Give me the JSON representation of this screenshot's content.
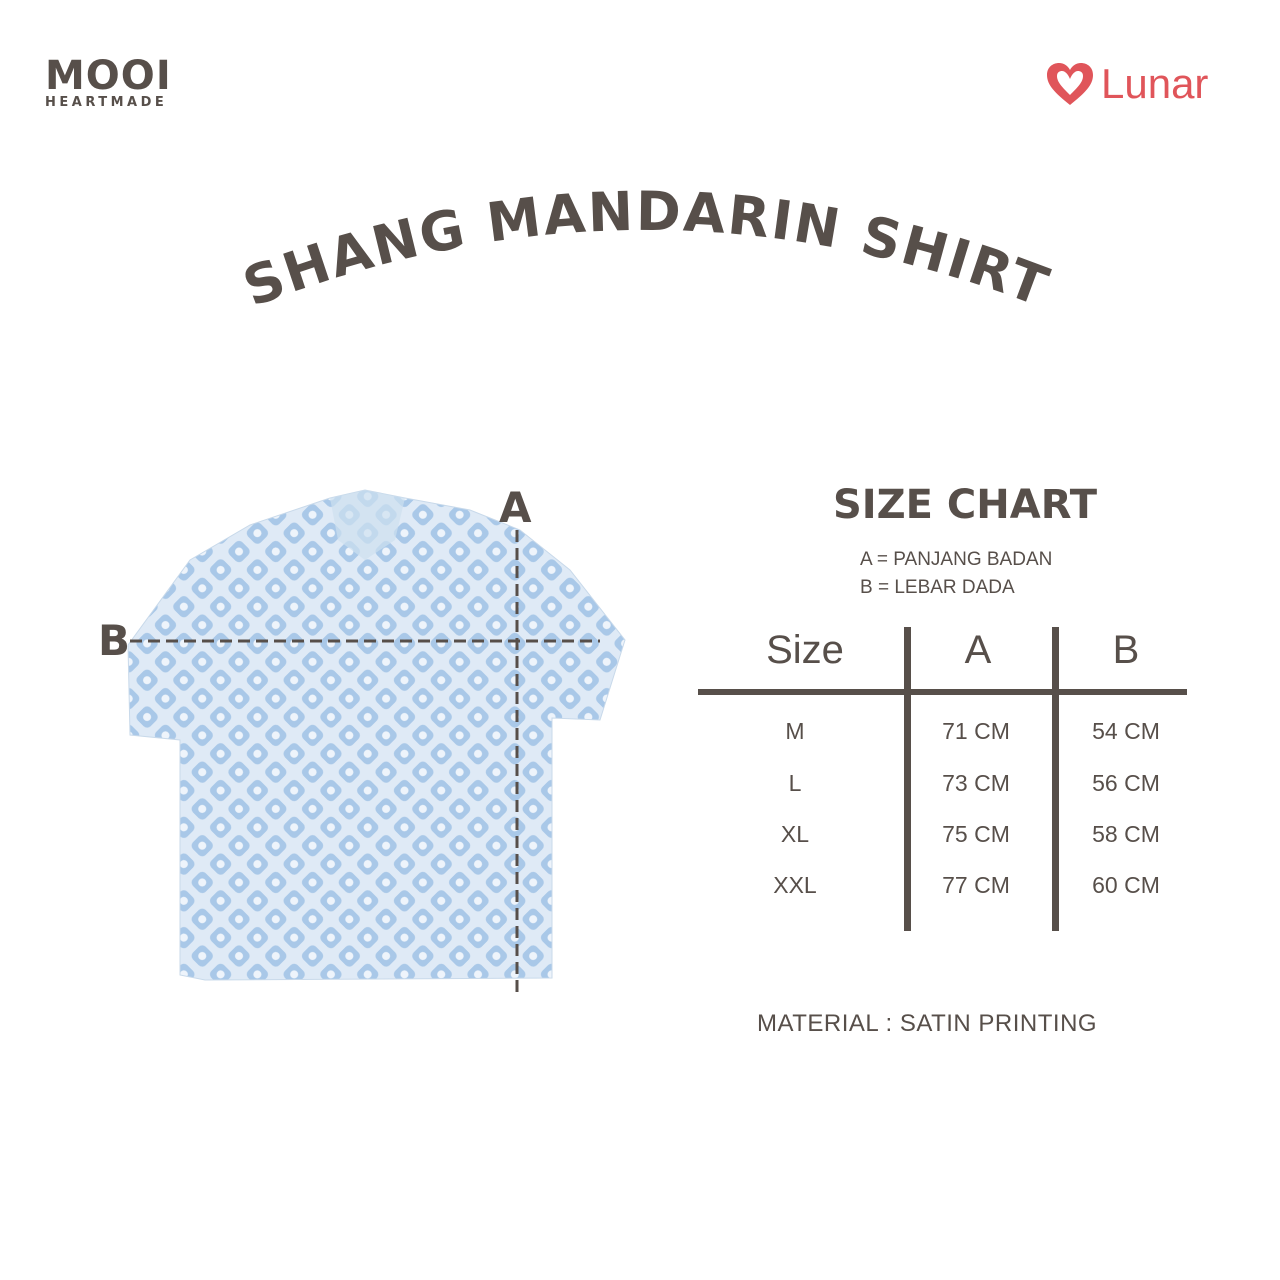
{
  "brand": {
    "name": "MOOI",
    "tagline": "HEARTMADE"
  },
  "partner": {
    "name": "Lunar",
    "icon": "heart-icon",
    "color": "#e0555a"
  },
  "title": "SHANG MANDARIN SHIRT",
  "measure_labels": {
    "a": "A",
    "b": "B"
  },
  "size_chart": {
    "title": "SIZE CHART",
    "legend": [
      "A = PANJANG BADAN",
      "B = LEBAR DADA"
    ],
    "headers": [
      "Size",
      "A",
      "B"
    ],
    "rows": [
      [
        "M",
        "71 CM",
        "54 CM"
      ],
      [
        "L",
        "73 CM",
        "56 CM"
      ],
      [
        "XL",
        "75 CM",
        "58 CM"
      ],
      [
        "XXL",
        "77 CM",
        "60 CM"
      ]
    ]
  },
  "material": "MATERIAL : SATIN PRINTING",
  "colors": {
    "text": "#574f4a",
    "accent": "#e0555a",
    "shirt": "#b9d3ec"
  }
}
